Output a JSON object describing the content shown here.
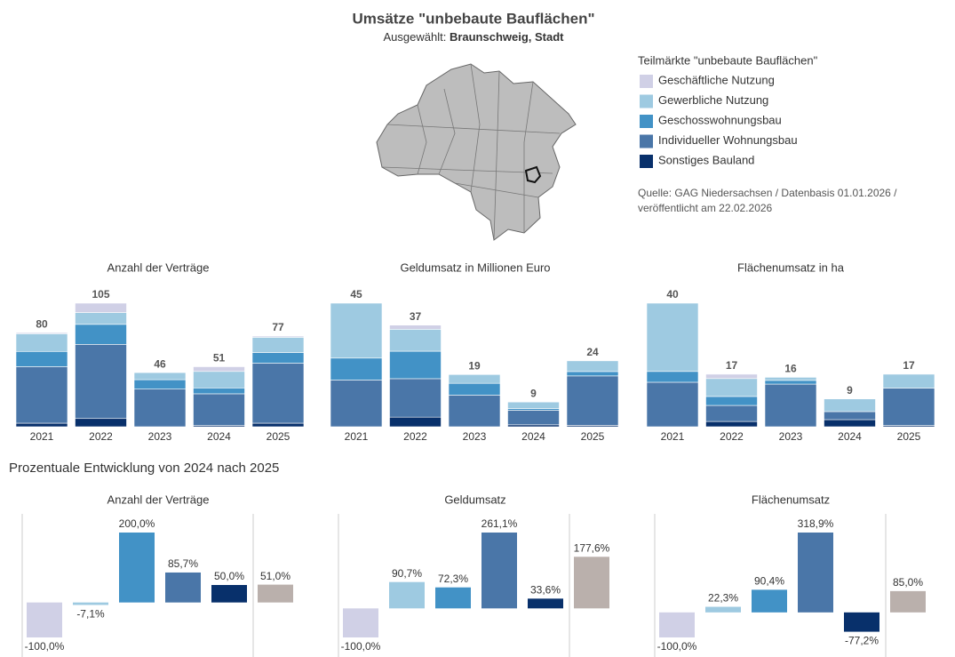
{
  "header": {
    "title": "Umsätze \"unbebaute Bauflächen\"",
    "subtitle_label": "Ausgewählt:",
    "selection": "Braunschweig, Stadt"
  },
  "legend": {
    "title": "Teilmärkte \"unbebaute Bauflächen\""
  },
  "source": [
    "Quelle: GAG Niedersachsen / Datenbasis 01.01.2026 /",
    "veröffentlicht am 22.02.2026"
  ],
  "section_title": "Prozentuale Entwicklung von 2024 nach 2025",
  "chart_data": [
    {
      "type": "stacked_bar",
      "title": "Anzahl der Verträge",
      "categories": [
        "2021",
        "2022",
        "2023",
        "2024",
        "2025"
      ],
      "ylim": [
        0,
        105
      ],
      "totals": [
        80,
        105,
        46,
        51,
        77
      ],
      "series": [
        {
          "name": "Sonstiges Bauland",
          "color": "#08306b",
          "values": [
            3,
            7,
            0,
            1,
            3
          ]
        },
        {
          "name": "Individueller Wohnungsbau",
          "color": "#4a76a8",
          "values": [
            48,
            63,
            32,
            27,
            51
          ]
        },
        {
          "name": "Geschosswohnungsbau",
          "color": "#4292c6",
          "values": [
            13,
            17,
            8,
            5,
            9
          ]
        },
        {
          "name": "Gewerbliche Nutzung",
          "color": "#9ecae1",
          "values": [
            15,
            10,
            6,
            14,
            13
          ]
        },
        {
          "name": "Geschäftliche Nutzung",
          "color": "#d0d0e6",
          "values": [
            1,
            8,
            0,
            4,
            1
          ]
        }
      ]
    },
    {
      "type": "stacked_bar",
      "title": "Geldumsatz in Millionen Euro",
      "categories": [
        "2021",
        "2022",
        "2023",
        "2024",
        "2025"
      ],
      "ylim": [
        0,
        45
      ],
      "totals": [
        45,
        37,
        19,
        9,
        24
      ],
      "series": [
        {
          "name": "Sonstiges Bauland",
          "color": "#08306b",
          "values": [
            0,
            3.5,
            0,
            0.7,
            0.5
          ]
        },
        {
          "name": "Individueller Wohnungsbau",
          "color": "#4a76a8",
          "values": [
            17,
            14,
            11.5,
            5.3,
            18
          ]
        },
        {
          "name": "Geschosswohnungsbau",
          "color": "#4292c6",
          "values": [
            8,
            10,
            4.3,
            0.6,
            1.6
          ]
        },
        {
          "name": "Gewerbliche Nutzung",
          "color": "#9ecae1",
          "values": [
            20,
            8,
            3.2,
            2.4,
            3.9
          ]
        },
        {
          "name": "Geschäftliche Nutzung",
          "color": "#d0d0e6",
          "values": [
            0,
            1.5,
            0,
            0,
            0
          ]
        }
      ]
    },
    {
      "type": "stacked_bar",
      "title": "Flächenumsatz in ha",
      "categories": [
        "2021",
        "2022",
        "2023",
        "2024",
        "2025"
      ],
      "ylim": [
        0,
        40
      ],
      "totals": [
        40,
        17,
        16,
        9,
        17
      ],
      "series": [
        {
          "name": "Sonstiges Bauland",
          "color": "#08306b",
          "values": [
            0,
            1.7,
            0,
            2.3,
            0.4
          ]
        },
        {
          "name": "Individueller Wohnungsbau",
          "color": "#4a76a8",
          "values": [
            14.4,
            5.2,
            13.8,
            2.6,
            12.1
          ]
        },
        {
          "name": "Geschosswohnungsbau",
          "color": "#4292c6",
          "values": [
            3.5,
            2.9,
            1.2,
            0,
            0
          ]
        },
        {
          "name": "Gewerbliche Nutzung",
          "color": "#9ecae1",
          "values": [
            22.1,
            5.8,
            1,
            4.1,
            4.5
          ]
        },
        {
          "name": "Geschäftliche Nutzung",
          "color": "#d0d0e6",
          "values": [
            0,
            1.4,
            0,
            0,
            0
          ]
        }
      ]
    },
    {
      "type": "bar",
      "title": "Anzahl der Verträge",
      "categories": [
        null,
        null,
        null,
        null,
        null,
        null
      ],
      "ylim": [
        -100,
        200
      ],
      "colors": [
        "#d0d0e6",
        "#9ecae1",
        "#4292c6",
        "#4a76a8",
        "#08306b",
        "#bab0ac"
      ],
      "values": [
        -100,
        -7.1,
        200,
        85.7,
        50,
        51
      ],
      "value_labels": [
        "-100,0%",
        "-7,1%",
        "200,0%",
        "85,7%",
        "50,0%",
        "51,0%"
      ]
    },
    {
      "type": "bar",
      "title": "Geldumsatz",
      "categories": [
        null,
        null,
        null,
        null,
        null,
        null
      ],
      "ylim": [
        -100,
        261.1
      ],
      "colors": [
        "#d0d0e6",
        "#9ecae1",
        "#4292c6",
        "#4a76a8",
        "#08306b",
        "#bab0ac"
      ],
      "values": [
        -100,
        90.7,
        72.3,
        261.1,
        33.6,
        177.6
      ],
      "value_labels": [
        "-100,0%",
        "90,7%",
        "72,3%",
        "261,1%",
        "33,6%",
        "177,6%"
      ]
    },
    {
      "type": "bar",
      "title": "Flächenumsatz",
      "categories": [
        null,
        null,
        null,
        null,
        null,
        null
      ],
      "ylim": [
        -100,
        318.9
      ],
      "colors": [
        "#d0d0e6",
        "#9ecae1",
        "#4292c6",
        "#4a76a8",
        "#08306b",
        "#bab0ac"
      ],
      "values": [
        -100,
        22.3,
        90.4,
        318.9,
        -77.2,
        85
      ],
      "value_labels": [
        "-100,0%",
        "22,3%",
        "90,4%",
        "318,9%",
        "-77,2%",
        "85,0%"
      ]
    }
  ]
}
